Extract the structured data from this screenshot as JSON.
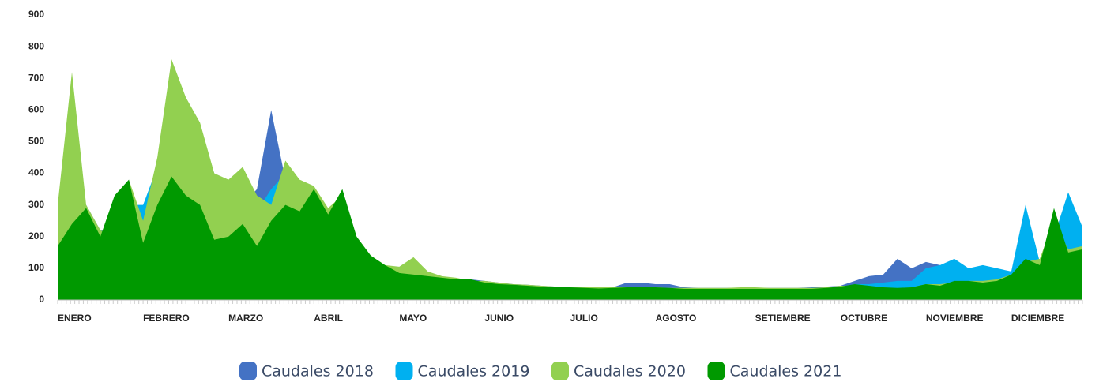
{
  "chart_data": {
    "type": "area",
    "categories": [
      "ENERO",
      null,
      null,
      null,
      null,
      null,
      "FEBRERO",
      null,
      null,
      null,
      null,
      null,
      "MARZO",
      null,
      null,
      null,
      null,
      null,
      "ABRIL",
      null,
      null,
      null,
      null,
      null,
      "MAYO",
      null,
      null,
      null,
      null,
      null,
      "JUNIO",
      null,
      null,
      null,
      null,
      null,
      "JULIO",
      null,
      null,
      null,
      null,
      null,
      "AGOSTO",
      null,
      null,
      null,
      null,
      null,
      null,
      "SETIEMBRE",
      null,
      null,
      null,
      null,
      null,
      "OCTUBRE",
      null,
      null,
      null,
      null,
      null,
      "NOVIEMBRE",
      null,
      null,
      null,
      null,
      null,
      "DICIEMBRE",
      null,
      null,
      null,
      null,
      null
    ],
    "series": [
      {
        "name": "Caudales 2018",
        "color": "#4472c4",
        "values": [
          200,
          220,
          300,
          220,
          210,
          380,
          200,
          350,
          400,
          420,
          550,
          400,
          300,
          300,
          350,
          600,
          380,
          300,
          250,
          250,
          250,
          180,
          130,
          100,
          80,
          75,
          70,
          65,
          60,
          65,
          60,
          55,
          50,
          48,
          45,
          42,
          42,
          40,
          40,
          40,
          55,
          55,
          50,
          50,
          40,
          38,
          38,
          38,
          38,
          38,
          38,
          38,
          38,
          40,
          42,
          45,
          60,
          75,
          80,
          130,
          100,
          120,
          110,
          90,
          80,
          90,
          80,
          90,
          100,
          110,
          120,
          140,
          150
        ]
      },
      {
        "name": "Caudales 2019",
        "color": "#00b0f0",
        "values": [
          200,
          250,
          250,
          220,
          200,
          300,
          300,
          420,
          500,
          520,
          500,
          350,
          300,
          300,
          280,
          350,
          400,
          300,
          280,
          250,
          250,
          180,
          130,
          100,
          80,
          75,
          70,
          65,
          60,
          55,
          50,
          50,
          48,
          45,
          42,
          40,
          40,
          38,
          38,
          40,
          40,
          40,
          38,
          38,
          35,
          35,
          35,
          35,
          35,
          35,
          35,
          35,
          35,
          38,
          38,
          40,
          50,
          50,
          55,
          60,
          60,
          100,
          110,
          130,
          100,
          110,
          100,
          90,
          300,
          120,
          200,
          340,
          230
        ]
      },
      {
        "name": "Caudales 2020",
        "color": "#92d050",
        "values": [
          300,
          720,
          300,
          220,
          200,
          380,
          250,
          450,
          760,
          640,
          560,
          400,
          380,
          420,
          330,
          300,
          440,
          380,
          360,
          290,
          330,
          200,
          140,
          110,
          105,
          135,
          90,
          75,
          70,
          60,
          60,
          55,
          50,
          48,
          45,
          42,
          42,
          40,
          40,
          40,
          40,
          40,
          40,
          38,
          38,
          38,
          38,
          38,
          40,
          40,
          38,
          38,
          38,
          38,
          40,
          45,
          45,
          40,
          40,
          35,
          40,
          50,
          50,
          55,
          60,
          60,
          65,
          80,
          120,
          130,
          250,
          160,
          170
        ]
      },
      {
        "name": "Caudales 2021",
        "color": "#009900",
        "values": [
          170,
          240,
          290,
          200,
          330,
          380,
          180,
          300,
          390,
          330,
          300,
          190,
          200,
          240,
          170,
          250,
          300,
          280,
          350,
          270,
          350,
          200,
          140,
          110,
          85,
          80,
          75,
          70,
          65,
          65,
          55,
          50,
          48,
          45,
          42,
          40,
          40,
          38,
          36,
          38,
          40,
          40,
          40,
          38,
          35,
          35,
          35,
          35,
          35,
          35,
          35,
          35,
          35,
          35,
          38,
          42,
          50,
          45,
          40,
          38,
          40,
          50,
          45,
          60,
          60,
          55,
          60,
          80,
          130,
          110,
          290,
          150,
          160
        ]
      }
    ],
    "ylim": [
      0,
      900
    ],
    "yticks": [
      0,
      100,
      200,
      300,
      400,
      500,
      600,
      700,
      800,
      900
    ],
    "grid": false,
    "legend": "bottom"
  }
}
